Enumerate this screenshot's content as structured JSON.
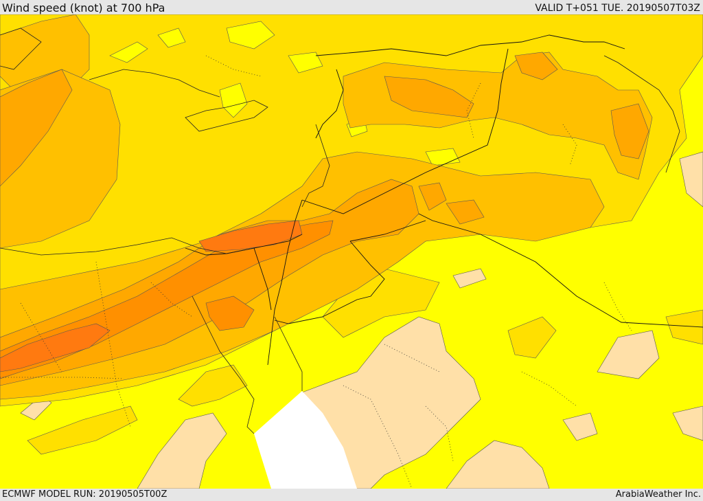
{
  "header": {
    "title": "Wind speed (knot) at 700 hPa",
    "valid_time": "VALID T+051 TUE. 20190507T03Z"
  },
  "footer": {
    "model_run": "ECMWF MODEL RUN: 20190505T00Z",
    "credit": "ArabiaWeather Inc."
  },
  "map": {
    "variable": "Wind speed",
    "units": "knot",
    "level": "700 hPa",
    "colors": {
      "lightest": "#ffe0a8",
      "light_yellow": "#ffff00",
      "yellow": "#ffe000",
      "gold": "#ffc000",
      "orange_light": "#ffa800",
      "orange": "#ff9000",
      "orange_dark": "#ff7a10",
      "no_data": "#ffffff"
    }
  }
}
